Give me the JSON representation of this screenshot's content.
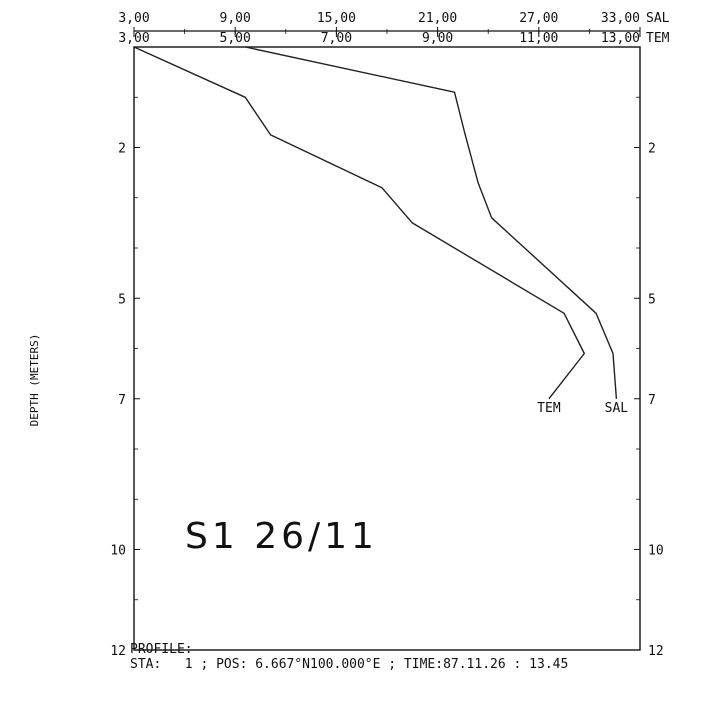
{
  "chart_data": {
    "type": "line",
    "title": "",
    "ylabel": "DEPTH (METERS)",
    "y_reversed": true,
    "ylim": [
      0,
      12
    ],
    "y_ticks_left": [
      "2",
      "5",
      "7",
      "10",
      "12"
    ],
    "y_ticks_left_values": [
      2,
      5,
      7,
      10,
      12
    ],
    "y_ticks_right": [
      "2",
      "5",
      "7",
      "10",
      "12"
    ],
    "y_ticks_right_values": [
      2,
      5,
      7,
      10,
      12
    ],
    "x_axes": [
      {
        "name": "SAL",
        "lim": [
          3,
          33
        ],
        "ticks": [
          "3,00",
          "9,00",
          "15,00",
          "21,00",
          "27,00",
          "33,00"
        ],
        "tick_values": [
          3,
          9,
          15,
          21,
          27,
          33
        ]
      },
      {
        "name": "TEM",
        "lim": [
          3,
          13
        ],
        "ticks": [
          "3,00",
          "5,00",
          "7,00",
          "9,00",
          "11,00",
          "13,00"
        ],
        "tick_values": [
          3,
          5,
          7,
          9,
          11,
          13
        ]
      }
    ],
    "series": [
      {
        "name": "TEM",
        "axis": "TEM",
        "label": "TEM",
        "x": [
          3.0,
          5.2,
          5.7,
          7.9,
          8.5,
          11.5,
          11.9,
          11.2
        ],
        "y": [
          0.0,
          1.0,
          1.75,
          2.8,
          3.5,
          5.3,
          6.1,
          7.0
        ]
      },
      {
        "name": "SAL",
        "axis": "SAL",
        "label": "SAL",
        "x": [
          9.6,
          22.0,
          22.6,
          23.4,
          24.2,
          30.4,
          31.4,
          31.6
        ],
        "y": [
          0.0,
          0.9,
          1.7,
          2.7,
          3.4,
          5.3,
          6.1,
          7.0
        ]
      }
    ],
    "annotations": {
      "station": "S1 26/11"
    },
    "grid": false,
    "legend": "none"
  },
  "footer": {
    "line1": "PROFILE:",
    "line2": "STA:   1 ; POS: 6.667°N100.000°E ; TIME:87.11.26 : 13.45"
  }
}
